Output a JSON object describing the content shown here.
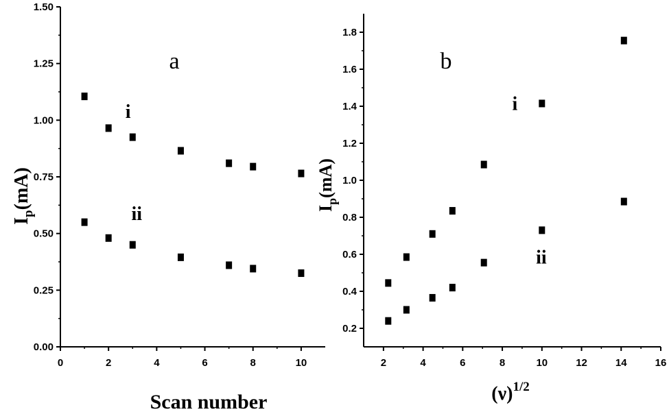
{
  "chart_data": [
    {
      "type": "scatter",
      "panel_label": "a",
      "xlabel": "Scan number",
      "ylabel_main": "I",
      "ylabel_sub": "p",
      "ylabel_rest": "(mA)",
      "xlim": [
        0,
        11
      ],
      "ylim": [
        0,
        1.5
      ],
      "xticks": [
        0,
        2,
        4,
        6,
        8,
        10
      ],
      "yticks": [
        0.0,
        0.25,
        0.5,
        0.75,
        1.0,
        1.25,
        1.5
      ],
      "ytick_labels": [
        "0.00",
        "0.25",
        "0.50",
        "0.75",
        "1.00",
        "1.25",
        "1.50"
      ],
      "grid": false,
      "series": [
        {
          "name": "i",
          "label_pos": [
            2.7,
            1.01
          ],
          "x": [
            1,
            2,
            3,
            5,
            7,
            8,
            10
          ],
          "y": [
            1.105,
            0.965,
            0.925,
            0.865,
            0.81,
            0.795,
            0.765
          ]
        },
        {
          "name": "ii",
          "label_pos": [
            2.95,
            0.56
          ],
          "x": [
            1,
            2,
            3,
            5,
            7,
            8,
            10
          ],
          "y": [
            0.55,
            0.48,
            0.45,
            0.395,
            0.36,
            0.345,
            0.325
          ]
        }
      ]
    },
    {
      "type": "scatter",
      "panel_label": "b",
      "xlabel_main": "(ν)",
      "xlabel_sup": "1/2",
      "ylabel_main": "I",
      "ylabel_sub": "p",
      "ylabel_rest": "(mA)",
      "xlim": [
        1,
        16
      ],
      "ylim": [
        0.1,
        1.9
      ],
      "xticks": [
        2,
        4,
        6,
        8,
        10,
        12,
        14,
        16
      ],
      "yticks": [
        0.2,
        0.4,
        0.6,
        0.8,
        1.0,
        1.2,
        1.4,
        1.6,
        1.8
      ],
      "ytick_labels": [
        "0.2",
        "0.4",
        "0.6",
        "0.8",
        "1.0",
        "1.2",
        "1.4",
        "1.6",
        "1.8"
      ],
      "grid": false,
      "series": [
        {
          "name": "i",
          "label_pos": [
            8.5,
            1.38
          ],
          "x": [
            2.24,
            3.16,
            4.47,
            5.48,
            7.07,
            10.0,
            14.14
          ],
          "y": [
            0.445,
            0.585,
            0.71,
            0.835,
            1.085,
            1.415,
            1.755
          ]
        },
        {
          "name": "ii",
          "label_pos": [
            9.7,
            0.55
          ],
          "x": [
            2.24,
            3.16,
            4.47,
            5.48,
            7.07,
            10.0,
            14.14
          ],
          "y": [
            0.24,
            0.3,
            0.365,
            0.42,
            0.555,
            0.73,
            0.885
          ]
        }
      ]
    }
  ]
}
